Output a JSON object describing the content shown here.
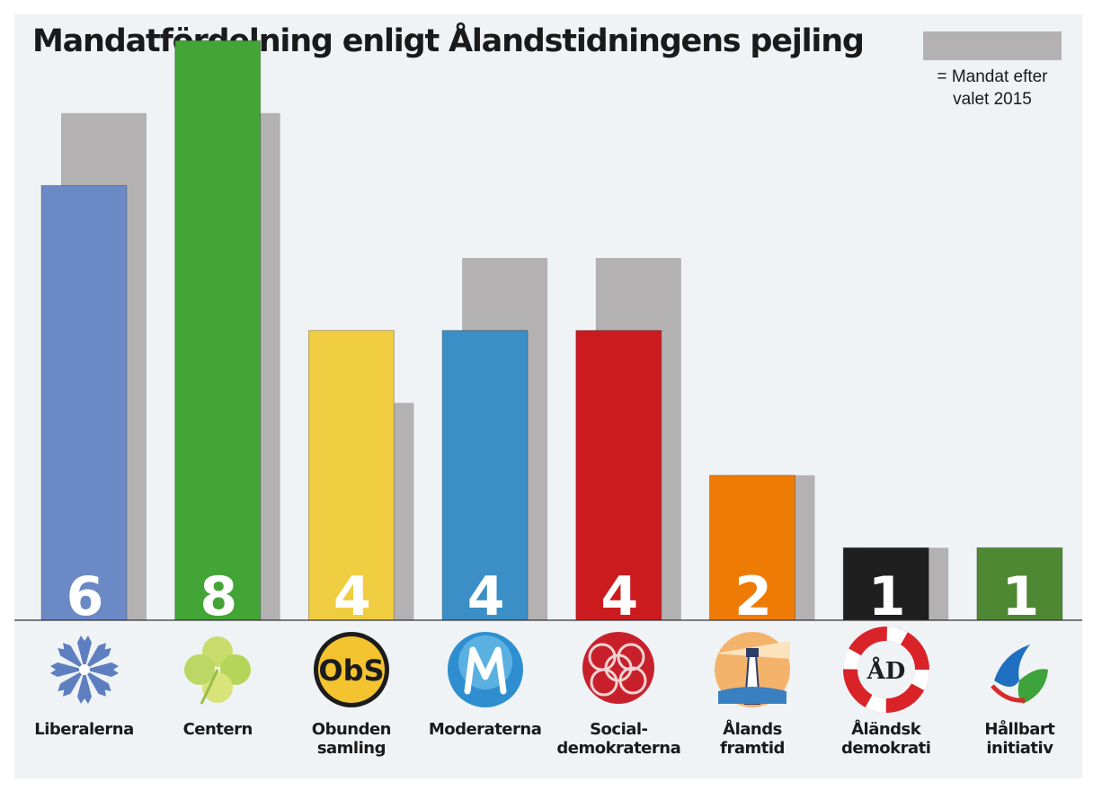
{
  "chart_data": {
    "type": "bar",
    "title": "Mandatfördelning enligt Ålandstidningens pejling",
    "legend": {
      "text": "= Mandat efter valet 2015",
      "color": "#b4b1b2",
      "position": "top-right"
    },
    "ylim": [
      0,
      8
    ],
    "grid": false,
    "categories": [
      {
        "label": "Liberalerna",
        "label_lines": [
          "Liberalerna"
        ],
        "color": "#6b8ac5",
        "icon": "cornflower-icon"
      },
      {
        "label": "Centern",
        "label_lines": [
          "Centern"
        ],
        "color": "#42a535",
        "icon": "four-leaf-clover-icon"
      },
      {
        "label": "Obunden samling",
        "label_lines": [
          "Obunden",
          "samling"
        ],
        "color": "#f0cd40",
        "icon": "obs-logo-icon"
      },
      {
        "label": "Moderaterna",
        "label_lines": [
          "Moderaterna"
        ],
        "color": "#3b8fc6",
        "icon": "moderaterna-m-icon"
      },
      {
        "label": "Social-demokraterna",
        "label_lines": [
          "Social-",
          "demokraterna"
        ],
        "color": "#cb1b1f",
        "icon": "rose-icon"
      },
      {
        "label": "Ålands framtid",
        "label_lines": [
          "Ålands",
          "framtid"
        ],
        "color": "#ee7b06",
        "icon": "lighthouse-icon"
      },
      {
        "label": "Åländsk demokrati",
        "label_lines": [
          "Åländsk",
          "demokrati"
        ],
        "color": "#1f1f1f",
        "icon": "lifebuoy-icon"
      },
      {
        "label": "Hållbart initiativ",
        "label_lines": [
          "Hållbart",
          "initiativ"
        ],
        "color": "#4f8833",
        "icon": "leaf-swirl-icon"
      }
    ],
    "series": [
      {
        "name": "Pejling",
        "values": [
          6,
          8,
          4,
          4,
          4,
          2,
          1,
          1
        ],
        "value_labels": [
          "6",
          "8",
          "4",
          "4",
          "4",
          "2",
          "1",
          "1"
        ]
      },
      {
        "name": "Mandat efter valet 2015",
        "values": [
          7,
          7,
          3,
          5,
          5,
          2,
          1,
          null
        ],
        "color": "#b4b1b2"
      }
    ]
  }
}
